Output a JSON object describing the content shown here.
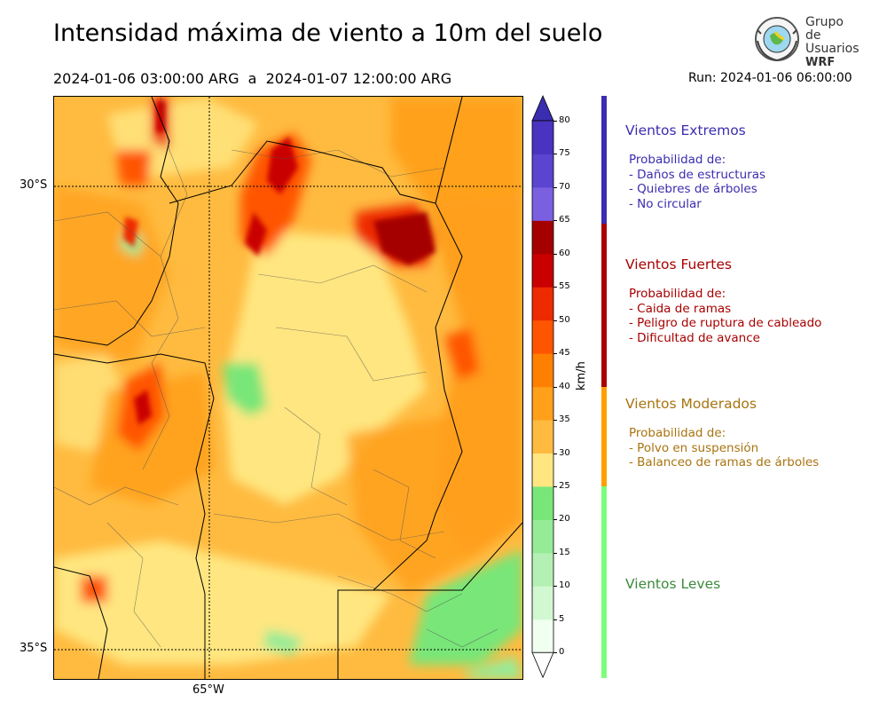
{
  "header": {
    "title": "Intensidad máxima de viento a 10m del suelo",
    "period": "2024-01-06 03:00:00 ARG  a  2024-01-07 12:00:00 ARG",
    "run": "Run: 2024-01-06 06:00:00"
  },
  "logo": {
    "line1": "Grupo de",
    "line2": "Usuarios",
    "line3": "WRF"
  },
  "map": {
    "lat_labels": [
      "30°S",
      "35°S"
    ],
    "lon_labels": [
      "65°W"
    ]
  },
  "colorbar": {
    "unit": "km/h",
    "ticks": [
      "0",
      "5",
      "10",
      "15",
      "20",
      "25",
      "30",
      "35",
      "40",
      "45",
      "50",
      "55",
      "60",
      "65",
      "70",
      "75",
      "80"
    ],
    "colors": [
      "#f0fff0",
      "#d2f8d2",
      "#b4f0b4",
      "#96eb96",
      "#78e678",
      "#ffe680",
      "#ffbb40",
      "#ff9f1a",
      "#ff7f00",
      "#ff5500",
      "#ee2a00",
      "#c90000",
      "#a50000",
      "#7a5fe0",
      "#5a44d0",
      "#4a33c0"
    ]
  },
  "categories": [
    {
      "title": "Vientos Extremos",
      "intro": "Probabilidad de:",
      "items": [
        "- Daños de estructuras",
        "- Quiebres de árboles",
        "- No circular"
      ],
      "color": "#3b2db0"
    },
    {
      "title": "Vientos Fuertes",
      "intro": "Probabilidad de:",
      "items": [
        "- Caida de ramas",
        "- Peligro de ruptura de cableado",
        "- Dificultad de avance"
      ],
      "color": "#a80000"
    },
    {
      "title": "Vientos Moderados",
      "intro": "Probabilidad de:",
      "items": [
        "- Polvo en suspensión",
        "- Balanceo de ramas de árboles"
      ],
      "color": "#a87410"
    },
    {
      "title": "Vientos Leves",
      "intro": "",
      "items": [],
      "color": "#3a8a3a"
    }
  ],
  "legend_bar_colors": [
    "#3b2db0",
    "#a80000",
    "#ff9f00",
    "#7bff7b"
  ]
}
